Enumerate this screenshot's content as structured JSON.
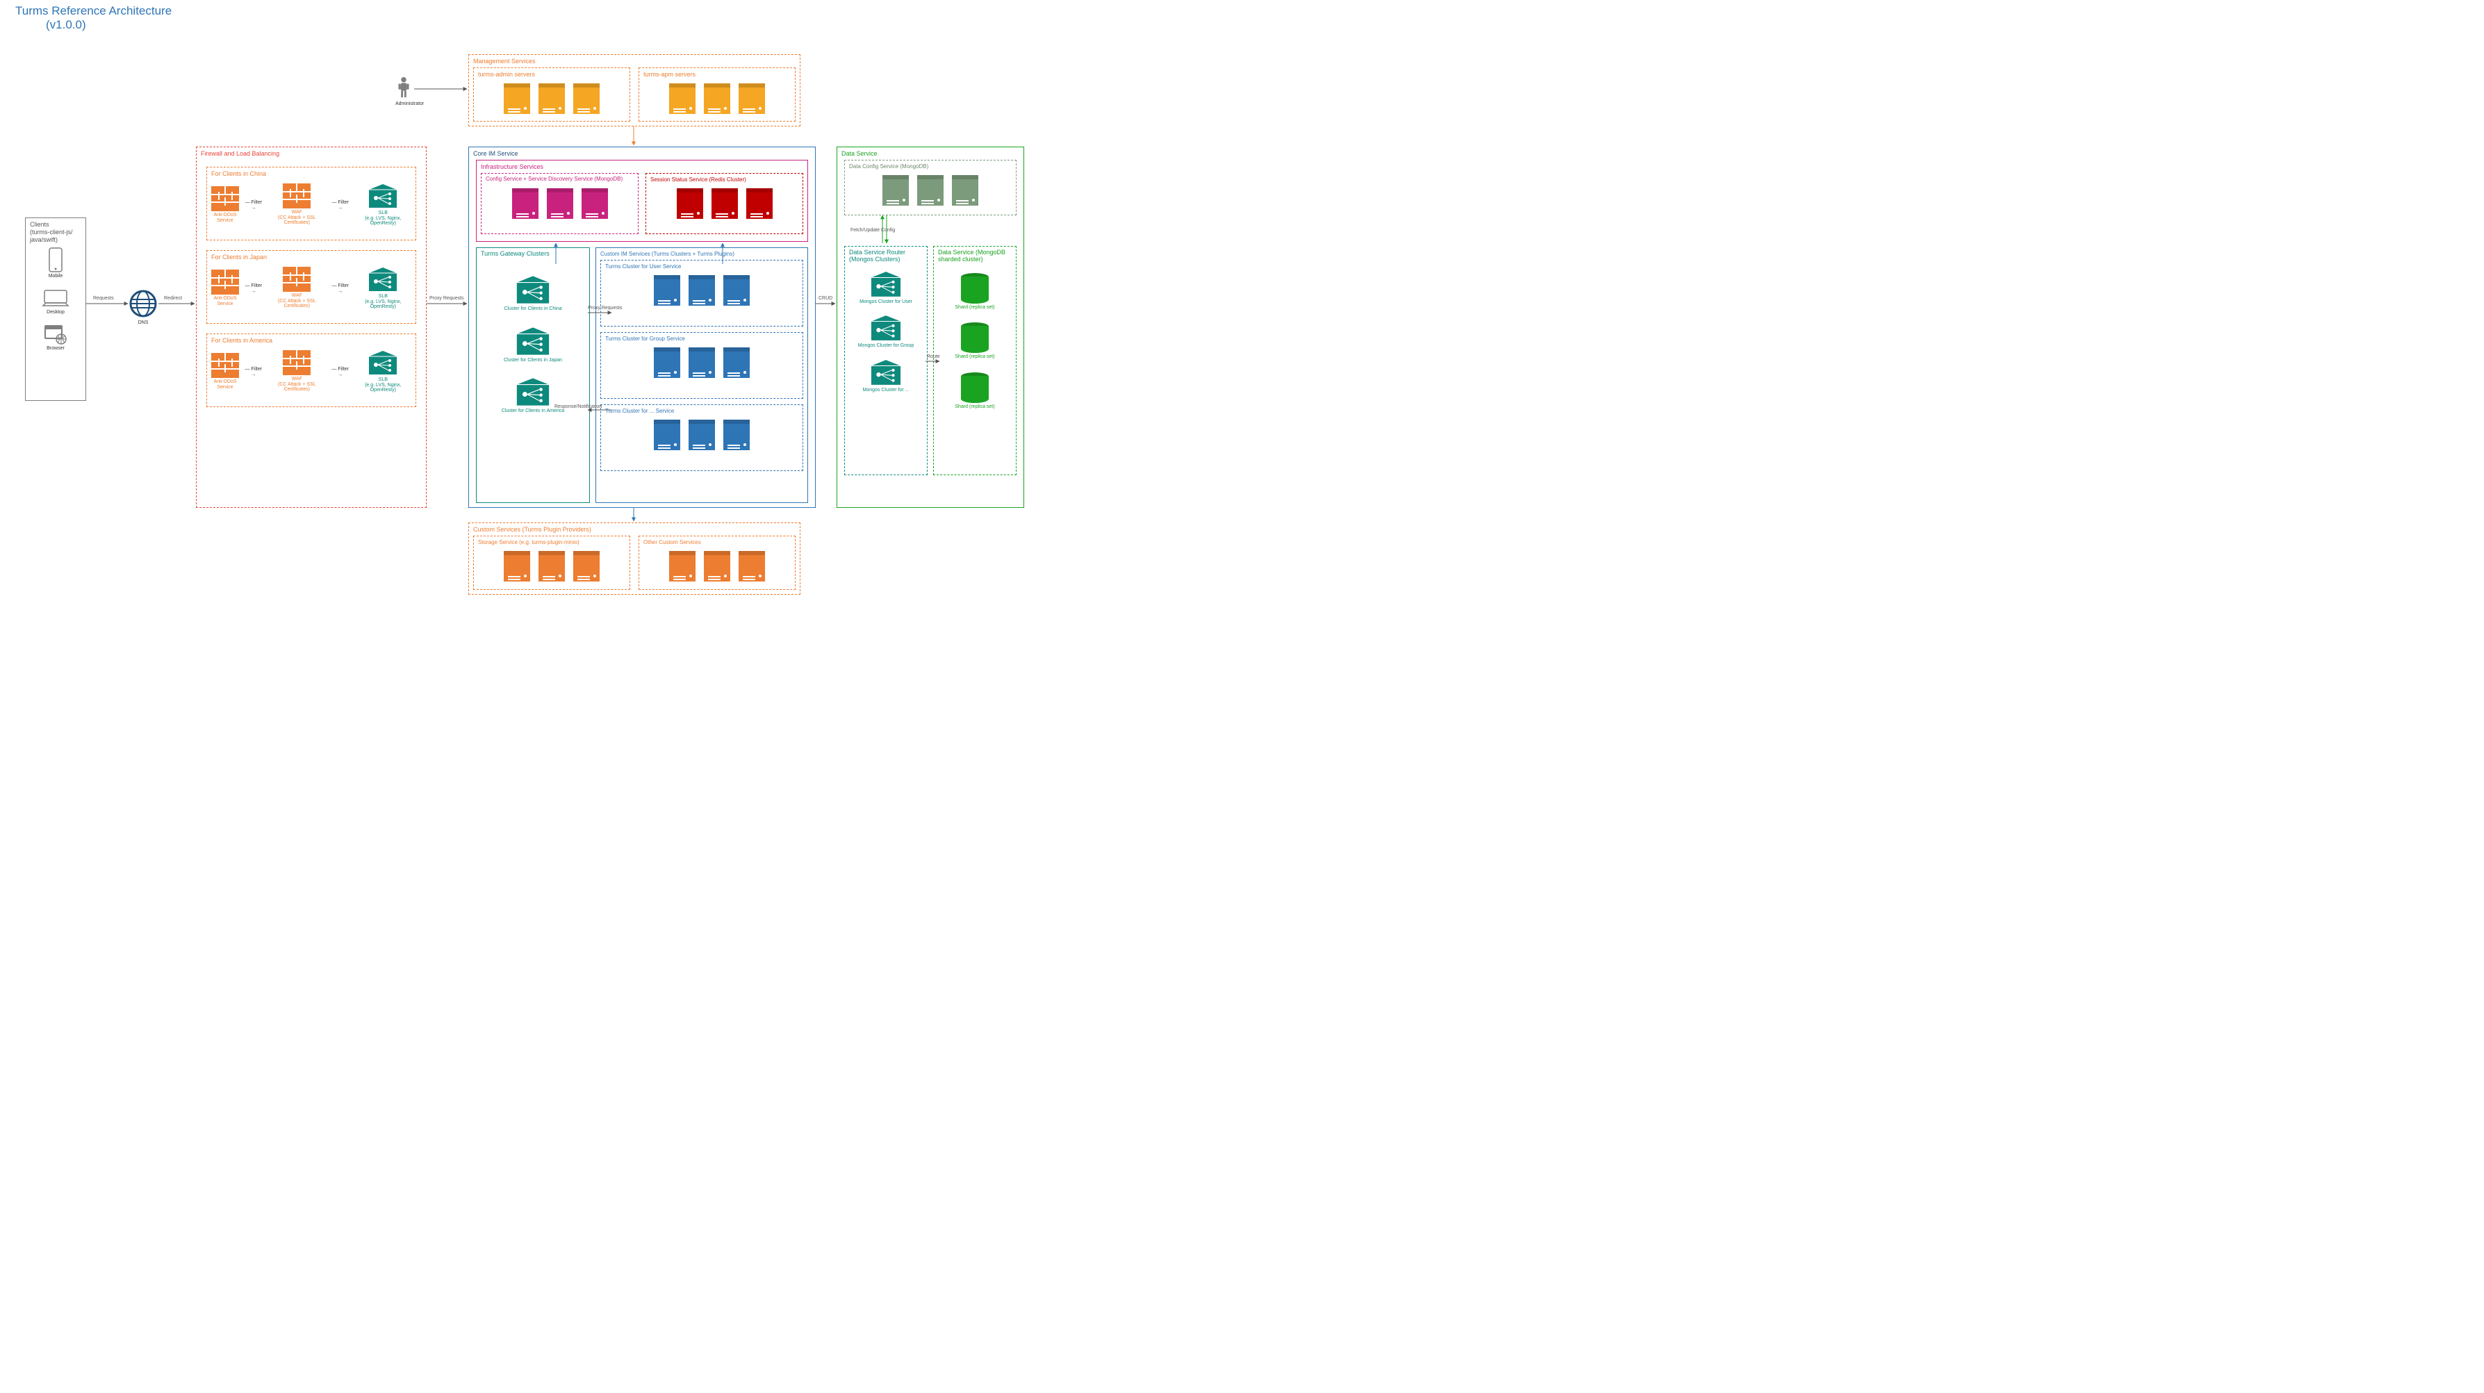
{
  "title_line1": "Turms Reference Architecture",
  "title_line2": "(v1.0.0)",
  "colors": {
    "title": "#2e75b6",
    "orange": "#ed7d31",
    "orange_fill": "#f4a460",
    "red": "#e8443a",
    "firewall": "#ed7d31",
    "teal": "#0e8a7d",
    "magenta": "#c9227e",
    "crimson": "#c00000",
    "blue": "#2e75b6",
    "navy": "#1f4e79",
    "green": "#1aa321",
    "olive": "#7c9a7c",
    "gray": "#7f7f7f"
  },
  "clients": {
    "title": "Clients\n(turms-client-js/\njava/swift)",
    "items": [
      "Mobile",
      "Desktop",
      "Browser"
    ]
  },
  "dns_label": "DNS",
  "admin_label": "Administrator",
  "edges": {
    "requests": "Requests",
    "redirect": "Redirect",
    "filter": "Filter",
    "proxy_requests": "Proxy Requests",
    "response": "Response/Notification",
    "crud": "CRUD",
    "route": "Route",
    "fetch": "Fetch/Update Config"
  },
  "firewall_lb": {
    "title": "Firewall and Load Balancing",
    "regions": [
      "For Clients in China",
      "For Clients in Japan",
      "For Clients in America"
    ],
    "anti_ddos": "Anti-DDoS\nService",
    "waf": "WAF\n(CC Attack + SSL Certificates)",
    "slb": "SLB\n(e.g. LVS, Nginx, OpenResty)"
  },
  "mgmt": {
    "title": "Management Services",
    "admin": "turms-admin servers",
    "apm": "turms-apm servers"
  },
  "core": {
    "title": "Core IM Service",
    "infra": {
      "title": "Infrastructure Services",
      "config": "Config Service + Service Discovery Service (MongoDB)",
      "session": "Session Status Service (Redis Cluster)"
    },
    "gateway": {
      "title": "Turms Gateway Clusters",
      "clusters": [
        "Cluster for Clients in China",
        "Cluster for Clients in Japan",
        "Cluster for Clients in America"
      ]
    },
    "custom_im": {
      "title": "Custom IM Services (Turms Clusters + Turms Plugins)",
      "rows": [
        "Turms Cluster for User Service",
        "Turms Cluster for Group Service",
        "Turms Cluster for ... Service"
      ]
    }
  },
  "data": {
    "title": "Data Service",
    "config": "Data Config Service (MongoDB)",
    "router": {
      "title": "Data Service Router (Mongos Clusters)",
      "items": [
        "Mongos Cluster for User",
        "Mongos Cluster for Group",
        "Mongos Cluster for ..."
      ]
    },
    "shard": {
      "title": "Data Service (MongoDB sharded cluster)",
      "item": "Shard (replica set)"
    }
  },
  "custom_svc": {
    "title": "Custom Services (Turms Plugin Providers)",
    "storage": "Storage Service (e.g. turms-plugin-minio)",
    "other": "Other Custom Services"
  }
}
